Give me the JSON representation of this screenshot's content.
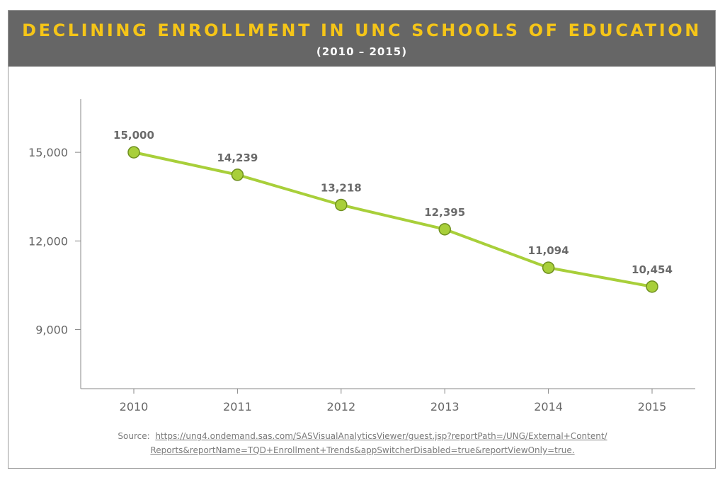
{
  "header": {
    "title": "DECLINING ENROLLMENT IN UNC SCHOOLS OF EDUCATION",
    "subtitle": "(2010 – 2015)"
  },
  "source": {
    "label": "Source:",
    "link_line1": "https://ung4.ondemand.sas.com/SASVisualAnalyticsViewer/guest.jsp?reportPath=/UNG/External+Content/",
    "link_line2": "Reports&reportName=TQD+Enrollment+Trends&appSwitcherDisabled=true&reportViewOnly=true."
  },
  "colors": {
    "header_bg": "#666666",
    "title": "#f5c518",
    "subtitle": "#ffffff",
    "line": "#a8cf3a",
    "marker_fill": "#a8cf3a",
    "marker_stroke": "#6e8f1e",
    "axis": "#888888",
    "text": "#666666"
  },
  "chart_data": {
    "type": "line",
    "title": "DECLINING ENROLLMENT IN UNC SCHOOLS OF EDUCATION",
    "subtitle": "(2010 – 2015)",
    "xlabel": "",
    "ylabel": "",
    "categories": [
      "2010",
      "2011",
      "2012",
      "2013",
      "2014",
      "2015"
    ],
    "series": [
      {
        "values": [
          15000,
          14239,
          13218,
          12395,
          11094,
          10454
        ],
        "labels": [
          "15,000",
          "14,239",
          "13,218",
          "12,395",
          "11,094",
          "10,454"
        ]
      }
    ],
    "yticks": [
      9000,
      12000,
      15000
    ],
    "ytick_labels": [
      "9,000",
      "12,000",
      "15,000"
    ],
    "ylim": [
      7000,
      16800
    ],
    "grid": false,
    "legend": "none"
  }
}
